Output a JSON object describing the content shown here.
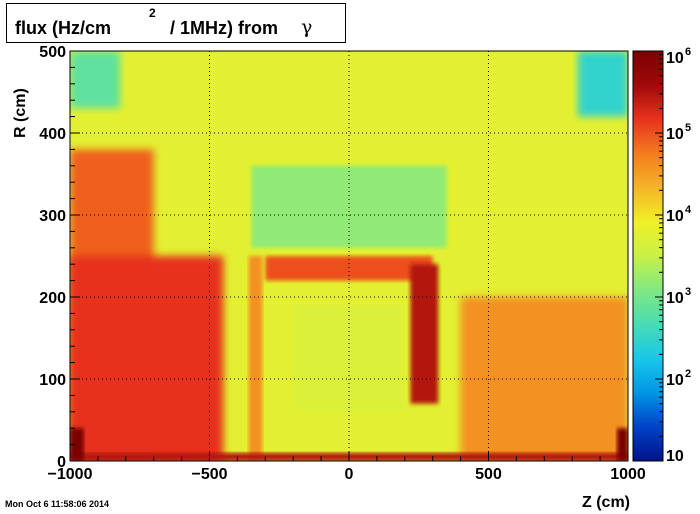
{
  "title": {
    "main": "flux (Hz/cm",
    "superscript": "2",
    "rest": "/ 1MHz) from",
    "symbol": "γ"
  },
  "footer_timestamp": "Mon Oct  6 11:58:06 2014",
  "chart_data": {
    "type": "heatmap",
    "title": "flux (Hz/cm2 / 1MHz) from γ",
    "xlabel": "Z (cm)",
    "ylabel": "R (cm)",
    "xlim": [
      -1000,
      1000
    ],
    "ylim": [
      0,
      500
    ],
    "x_ticks": [
      -1000,
      -500,
      0,
      500,
      1000
    ],
    "x_tick_labels": [
      "−1000",
      "−500",
      "0",
      "500",
      "1000"
    ],
    "y_ticks": [
      0,
      100,
      200,
      300,
      400,
      500
    ],
    "y_tick_labels": [
      "0",
      "100",
      "200",
      "300",
      "400",
      "500"
    ],
    "grid": true,
    "colorbar": {
      "scale": "log",
      "range": [
        10,
        1000000
      ],
      "tick_bases": [
        "10",
        "10",
        "10",
        "10",
        "10",
        "10"
      ],
      "tick_exponents": [
        "",
        "2",
        "3",
        "4",
        "5",
        "6"
      ],
      "tick_values": [
        10,
        100,
        1000,
        10000,
        100000,
        1000000
      ],
      "palette": [
        "#00128a",
        "#0042c8",
        "#0096e6",
        "#18c8e8",
        "#48dcb4",
        "#80e882",
        "#c8f046",
        "#f0f028",
        "#f5b428",
        "#f27d1e",
        "#e8321e",
        "#a00a0a",
        "#7a0000"
      ]
    },
    "regions": [
      {
        "zone": "background",
        "z": [
          -1000,
          1000
        ],
        "r": [
          0,
          500
        ],
        "flux": 6000
      },
      {
        "zone": "outer-left",
        "z": [
          -1000,
          -700
        ],
        "r": [
          0,
          380
        ],
        "flux": 80000
      },
      {
        "zone": "lower-left",
        "z": [
          -1000,
          -450
        ],
        "r": [
          0,
          250
        ],
        "flux": 150000
      },
      {
        "zone": "lower-right",
        "z": [
          400,
          1000
        ],
        "r": [
          0,
          200
        ],
        "flux": 40000
      },
      {
        "zone": "corner-top-left",
        "z": [
          -1000,
          -820
        ],
        "r": [
          430,
          500
        ],
        "flux": 700
      },
      {
        "zone": "corner-top-right",
        "z": [
          820,
          1000
        ],
        "r": [
          420,
          500
        ],
        "flux": 300
      },
      {
        "zone": "cavity-upper",
        "z": [
          -350,
          350
        ],
        "r": [
          260,
          360
        ],
        "flux": 1500
      },
      {
        "zone": "cavity-frame-top",
        "z": [
          -300,
          300
        ],
        "r": [
          220,
          250
        ],
        "flux": 100000
      },
      {
        "zone": "cavity-frame-left",
        "z": [
          -360,
          -310
        ],
        "r": [
          0,
          250
        ],
        "flux": 40000
      },
      {
        "zone": "cavity-frame-right",
        "z": [
          220,
          320
        ],
        "r": [
          70,
          240
        ],
        "flux": 300000
      },
      {
        "zone": "inner-core",
        "z": [
          -200,
          200
        ],
        "r": [
          60,
          190
        ],
        "flux": 5000
      },
      {
        "zone": "beamline-floor",
        "z": [
          -1000,
          1000
        ],
        "r": [
          0,
          10
        ],
        "flux": 300000
      },
      {
        "zone": "hot-spot-left",
        "z": [
          -1000,
          -950
        ],
        "r": [
          0,
          40
        ],
        "flux": 1000000
      },
      {
        "zone": "hot-spot-right",
        "z": [
          960,
          1000
        ],
        "r": [
          0,
          40
        ],
        "flux": 1000000
      }
    ]
  }
}
